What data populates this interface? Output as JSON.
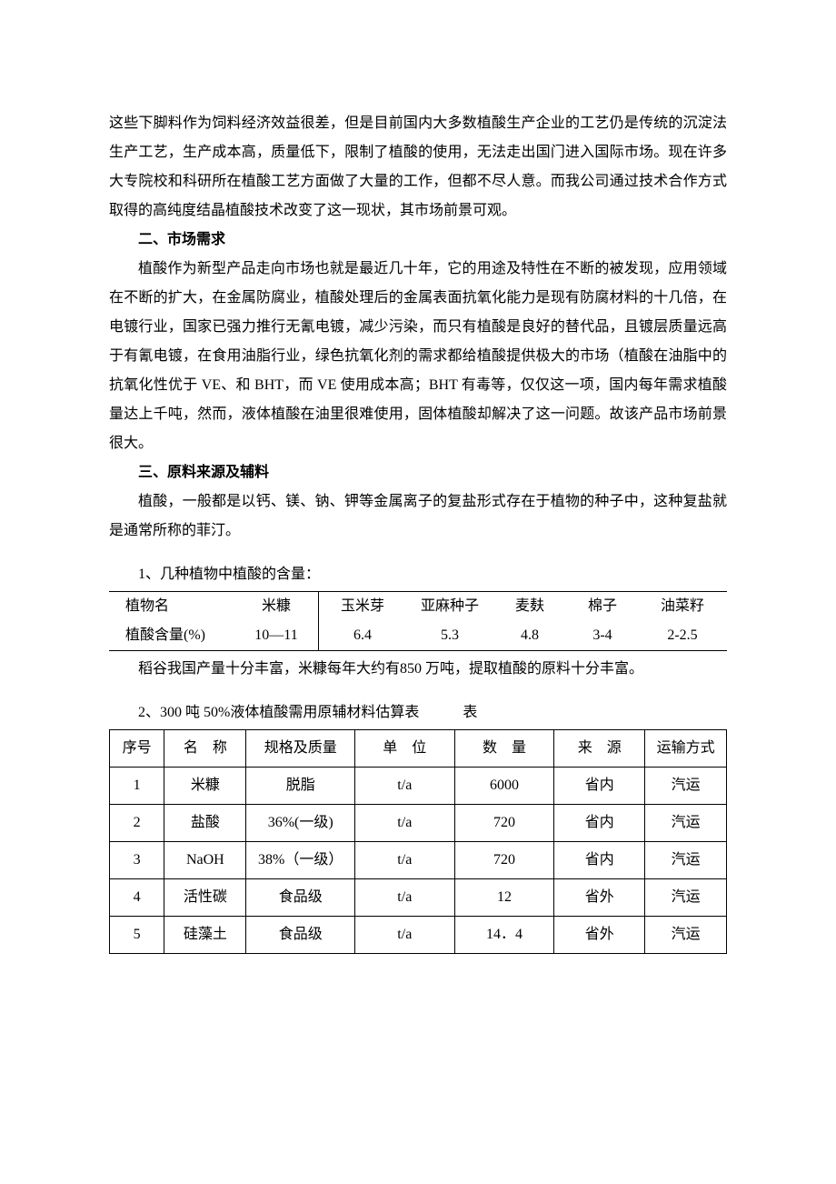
{
  "paragraphs": {
    "p1": "这些下脚料作为饲料经济效益很差，但是目前国内大多数植酸生产企业的工艺仍是传统的沉淀法生产工艺，生产成本高，质量低下，限制了植酸的使用，无法走出国门进入国际市场。现在许多大专院校和科研所在植酸工艺方面做了大量的工作，但都不尽人意。而我公司通过技术合作方式取得的高纯度结晶植酸技术改变了这一现状，其市场前景可观。",
    "h2": "二、市场需求",
    "p2": "植酸作为新型产品走向市场也就是最近几十年，它的用途及特性在不断的被发现，应用领域在不断的扩大，在金属防腐业，植酸处理后的金属表面抗氧化能力是现有防腐材料的十几倍，在电镀行业，国家已强力推行无氰电镀，减少污染，而只有植酸是良好的替代品，且镀层质量远高于有氰电镀，在食用油脂行业，绿色抗氧化剂的需求都给植酸提供极大的市场（植酸在油脂中的抗氧化性优于 VE、和 BHT，而 VE 使用成本高；BHT 有毒等，仅仅这一项，国内每年需求植酸量达上千吨，然而，液体植酸在油里很难使用，固体植酸却解决了这一问题。故该产品市场前景很大。",
    "h3": "三、原料来源及辅料",
    "p3": "植酸，一般都是以钙、镁、钠、钾等金属离子的复盐形式存在于植物的种子中，这种复盐就是通常所称的菲汀。"
  },
  "table1": {
    "caption": "1、几种植物中植酸的含量：",
    "headers": [
      "植物名",
      "米糠",
      "玉米芽",
      "亚麻种子",
      "麦麸",
      "棉子",
      "油菜籽"
    ],
    "row_label": "植酸含量(%)",
    "values": [
      "10—11",
      "6.4",
      "5.3",
      "4.8",
      "3-4",
      "2-2.5"
    ],
    "note": "稻谷我国产量十分丰富，米糠每年大约有850 万吨，提取植酸的原料十分丰富。"
  },
  "table2": {
    "caption": "2、300 吨 50%液体植酸需用原辅材料估算表",
    "caption_suffix": "表",
    "columns": [
      "序号",
      "名　称",
      "规格及质量",
      "单　位",
      "数　量",
      "来　源",
      "运输方式"
    ],
    "rows": [
      [
        "1",
        "米糠",
        "脱脂",
        "t/a",
        "6000",
        "省内",
        "汽运"
      ],
      [
        "2",
        "盐酸",
        "36%(一级)",
        "t/a",
        "720",
        "省内",
        "汽运"
      ],
      [
        "3",
        "NaOH",
        "38%（一级）",
        "t/a",
        "720",
        "省内",
        "汽运"
      ],
      [
        "4",
        "活性碳",
        "食品级",
        "t/a",
        "12",
        "省外",
        "汽运"
      ],
      [
        "5",
        "硅藻土",
        "食品级",
        "t/a",
        "14．4",
        "省外",
        "汽运"
      ]
    ]
  }
}
